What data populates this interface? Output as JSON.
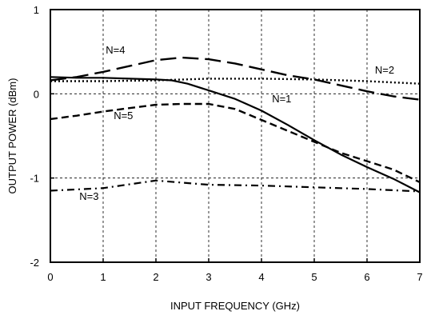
{
  "chart_data": {
    "type": "line",
    "xlabel": "INPUT FREQUENCY (GHz)",
    "ylabel": "OUTPUT POWER (dBm)",
    "xlim": [
      0,
      7
    ],
    "ylim": [
      -2,
      1
    ],
    "xticks": [
      0,
      1,
      2,
      3,
      4,
      5,
      6,
      7
    ],
    "yticks": [
      1,
      0,
      -1,
      -2
    ],
    "grid": true,
    "series": [
      {
        "name": "N=1",
        "style": "solid",
        "x": [
          0,
          0.5,
          1,
          1.5,
          2,
          2.3,
          2.6,
          3,
          3.5,
          4,
          4.5,
          5,
          5.5,
          6,
          6.5,
          7
        ],
        "y": [
          0.2,
          0.19,
          0.19,
          0.18,
          0.17,
          0.16,
          0.12,
          0.04,
          -0.06,
          -0.2,
          -0.37,
          -0.55,
          -0.72,
          -0.87,
          -1.01,
          -1.17
        ]
      },
      {
        "name": "N=2",
        "style": "dotted",
        "x": [
          0,
          1,
          2,
          3,
          4,
          5,
          6,
          7
        ],
        "y": [
          0.15,
          0.15,
          0.16,
          0.18,
          0.18,
          0.17,
          0.15,
          0.12
        ]
      },
      {
        "name": "N=3",
        "style": "dash-dot",
        "x": [
          0,
          1,
          2,
          3,
          4,
          5,
          6,
          7
        ],
        "y": [
          -1.15,
          -1.12,
          -1.03,
          -1.08,
          -1.09,
          -1.11,
          -1.13,
          -1.16
        ]
      },
      {
        "name": "N=4",
        "style": "long-dash",
        "x": [
          0,
          0.5,
          1,
          1.5,
          2,
          2.5,
          3,
          3.5,
          4,
          4.5,
          5,
          5.5,
          6,
          6.5,
          7
        ],
        "y": [
          0.16,
          0.2,
          0.26,
          0.33,
          0.4,
          0.43,
          0.41,
          0.36,
          0.29,
          0.22,
          0.17,
          0.1,
          0.03,
          -0.03,
          -0.07
        ]
      },
      {
        "name": "N=5",
        "style": "short-dash",
        "x": [
          0,
          0.5,
          1,
          1.5,
          2,
          2.5,
          3,
          3.5,
          4,
          4.5,
          5,
          5.5,
          6,
          6.5,
          7
        ],
        "y": [
          -0.3,
          -0.26,
          -0.21,
          -0.17,
          -0.13,
          -0.12,
          -0.12,
          -0.18,
          -0.31,
          -0.44,
          -0.57,
          -0.7,
          -0.8,
          -0.9,
          -1.05
        ]
      }
    ]
  }
}
